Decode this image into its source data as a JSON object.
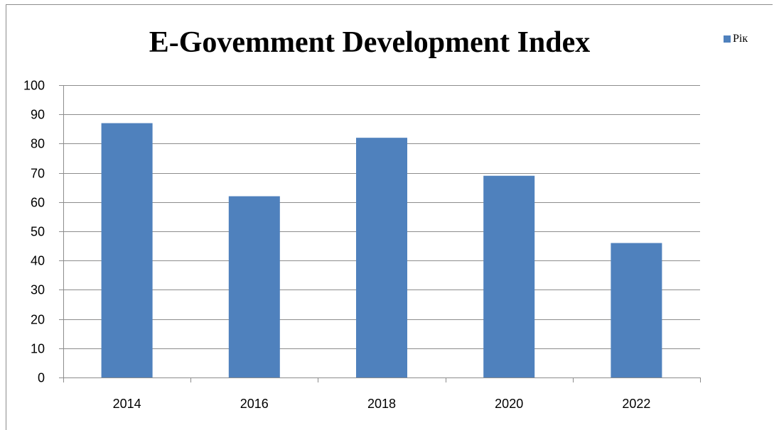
{
  "chart_data": {
    "type": "bar",
    "title": "E-Govemment Development Index",
    "categories": [
      "2014",
      "2016",
      "2018",
      "2020",
      "2022"
    ],
    "series": [
      {
        "name": "Рік",
        "values": [
          87,
          62,
          82,
          69,
          46
        ],
        "color": "#4f81bd"
      }
    ],
    "ylim": [
      0,
      100
    ],
    "yticks": [
      0,
      10,
      20,
      30,
      40,
      50,
      60,
      70,
      80,
      90,
      100
    ],
    "grid": true,
    "legend_position": "top-right"
  }
}
